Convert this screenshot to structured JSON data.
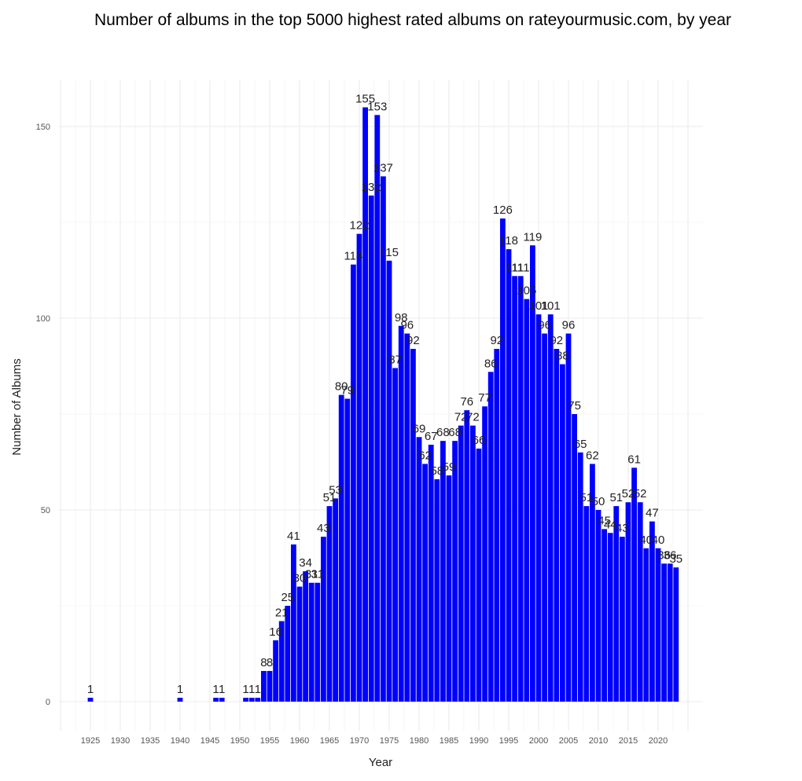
{
  "chart_data": {
    "type": "bar",
    "title": "Number of albums in the top 5000 highest rated albums on rateyourmusic.com, by year",
    "xlabel": "Year",
    "ylabel": "Number of Albums",
    "bar_color": "#0000ff",
    "grid": true,
    "xlim": [
      1920,
      2024
    ],
    "ylim": [
      -8,
      162
    ],
    "x_ticks": [
      1925,
      1930,
      1935,
      1940,
      1945,
      1950,
      1955,
      1960,
      1965,
      1970,
      1975,
      1980,
      1985,
      1990,
      1995,
      2000,
      2005,
      2010,
      2015,
      2020
    ],
    "y_ticks": [
      0,
      50,
      100,
      150
    ],
    "x": [
      1925,
      1940,
      1946,
      1947,
      1951,
      1952,
      1953,
      1954,
      1955,
      1956,
      1957,
      1958,
      1959,
      1960,
      1961,
      1962,
      1963,
      1964,
      1965,
      1966,
      1967,
      1968,
      1969,
      1970,
      1971,
      1972,
      1973,
      1974,
      1975,
      1976,
      1977,
      1978,
      1979,
      1980,
      1981,
      1982,
      1983,
      1984,
      1985,
      1986,
      1987,
      1988,
      1989,
      1990,
      1991,
      1992,
      1993,
      1994,
      1995,
      1996,
      1997,
      1998,
      1999,
      2000,
      2001,
      2002,
      2003,
      2004,
      2005,
      2006,
      2007,
      2008,
      2009,
      2010,
      2011,
      2012,
      2013,
      2014,
      2015,
      2016,
      2017,
      2018,
      2019,
      2020,
      2021,
      2022,
      2023
    ],
    "values": [
      1,
      1,
      1,
      1,
      1,
      1,
      1,
      8,
      8,
      16,
      21,
      25,
      41,
      30,
      34,
      31,
      31,
      43,
      51,
      53,
      80,
      79,
      114,
      122,
      155,
      132,
      153,
      137,
      115,
      87,
      98,
      96,
      92,
      69,
      62,
      67,
      58,
      68,
      59,
      68,
      72,
      76,
      72,
      66,
      77,
      86,
      92,
      126,
      118,
      111,
      111,
      105,
      119,
      101,
      96,
      101,
      92,
      88,
      96,
      75,
      65,
      51,
      62,
      50,
      45,
      44,
      51,
      43,
      52,
      61,
      52,
      40,
      47,
      40,
      36,
      36,
      35
    ]
  }
}
